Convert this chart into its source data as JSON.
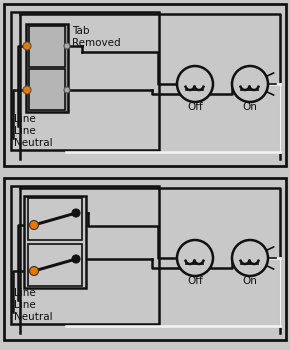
{
  "bg_color": "#c8c8c8",
  "wire_black": "#111111",
  "wire_white": "#f5f5f5",
  "orange_color": "#e87800",
  "outlet_gray": "#aaaaaa",
  "outlet_inner": "#c8c8c8",
  "tab_text": "Tab\nRemoved",
  "line1": "Line",
  "line2": "Line",
  "neutral": "Neutral",
  "off_label": "Off",
  "on_label": "On",
  "font_size": 7.5,
  "lw": 1.8,
  "lw_thin": 1.2
}
